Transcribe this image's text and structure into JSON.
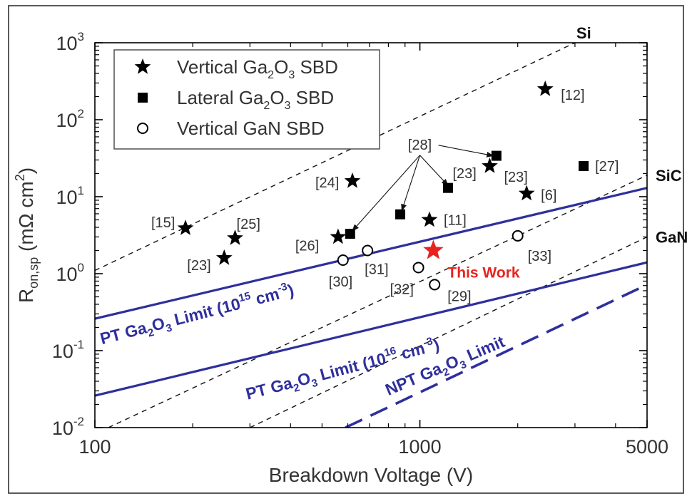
{
  "chart_data": {
    "type": "scatter",
    "title": "",
    "xlabel": "Breakdown Voltage (V)",
    "ylabel": {
      "main": "R",
      "sub": "on,sp",
      "unit": " (mΩ cm",
      "unit_sup": "2",
      "close": ")"
    },
    "x_scale": "log",
    "y_scale": "log",
    "xlim": [
      100,
      5000
    ],
    "ylim": [
      0.01,
      1000
    ],
    "x_ticks": [
      {
        "value": 100,
        "label": "100"
      },
      {
        "value": 1000,
        "label": "1000"
      },
      {
        "value": 5000,
        "label": "5000"
      }
    ],
    "y_ticks": [
      {
        "value": 0.01,
        "base": "10",
        "exp": "-2"
      },
      {
        "value": 0.1,
        "base": "10",
        "exp": "-1"
      },
      {
        "value": 1,
        "base": "10",
        "exp": "0"
      },
      {
        "value": 10,
        "base": "10",
        "exp": "1"
      },
      {
        "value": 100,
        "base": "10",
        "exp": "2"
      },
      {
        "value": 1000,
        "base": "10",
        "exp": "3"
      }
    ],
    "legend": {
      "position": "top-left",
      "entries": [
        {
          "marker": "star",
          "pre": "Vertical Ga",
          "sub": "2",
          "mid": "O",
          "sub2": "3",
          "post": " SBD"
        },
        {
          "marker": "square",
          "pre": "Lateral Ga",
          "sub": "2",
          "mid": "O",
          "sub2": "3",
          "post": " SBD"
        },
        {
          "marker": "circle",
          "pre": "Vertical GaN SBD",
          "sub": "",
          "mid": "",
          "sub2": "",
          "post": ""
        }
      ]
    },
    "limit_lines": [
      {
        "id": "si",
        "style": "dashed-black",
        "points": [
          [
            100,
            1.1
          ],
          [
            3000,
            1000
          ]
        ],
        "label": "Si",
        "label_at": [
          3000,
          1000
        ]
      },
      {
        "id": "sic",
        "style": "dashed-black",
        "points": [
          [
            110,
            0.01
          ],
          [
            5000,
            19
          ]
        ],
        "label": "SiC",
        "label_at": [
          5000,
          19
        ]
      },
      {
        "id": "gan",
        "style": "dashed-black",
        "points": [
          [
            300,
            0.01
          ],
          [
            5000,
            3
          ]
        ],
        "label": "GaN",
        "label_at": [
          5000,
          3
        ]
      },
      {
        "id": "pt15",
        "style": "solid-blue",
        "points": [
          [
            100,
            0.26
          ],
          [
            5000,
            13
          ]
        ],
        "label_pre": "PT Ga",
        "label_sub": "2",
        "label_mid": "O",
        "label_sub2": "3",
        "label_post": " Limit (10",
        "label_sup": "15",
        "label_unit": " cm",
        "label_unit_sup": "-3",
        "label_close": ")",
        "label_at": [
          105,
          0.12
        ],
        "label_angle": -14.4
      },
      {
        "id": "pt16",
        "style": "solid-blue",
        "points": [
          [
            100,
            0.026
          ],
          [
            5000,
            1.4
          ]
        ],
        "label_pre": "PT Ga",
        "label_sub": "2",
        "label_mid": "O",
        "label_sub2": "3",
        "label_post": " Limit (10",
        "label_sup": "16",
        "label_unit": " cm",
        "label_unit_sup": "-3",
        "label_close": ")",
        "label_at": [
          295,
          0.023
        ],
        "label_angle": -14.6
      },
      {
        "id": "npt",
        "style": "dashed-blue",
        "points": [
          [
            590,
            0.01
          ],
          [
            5000,
            0.72
          ]
        ],
        "label_pre": "NPT Ga",
        "label_sub": "2",
        "label_mid": "O",
        "label_sub2": "3",
        "label_post": " Limit",
        "label_sup": "",
        "label_unit": "",
        "label_unit_sup": "",
        "label_close": "",
        "label_at": [
          800,
          0.026
        ],
        "label_angle": -23
      }
    ],
    "series": [
      {
        "name": "Vertical Ga2O3 SBD",
        "marker": "star",
        "color": "#000000",
        "points": [
          {
            "x": 190,
            "y": 3.9,
            "label": "[15]"
          },
          {
            "x": 250,
            "y": 1.6,
            "label": "[23]"
          },
          {
            "x": 270,
            "y": 2.9,
            "label": "[25]"
          },
          {
            "x": 560,
            "y": 3.0,
            "label": "[26]"
          },
          {
            "x": 620,
            "y": 16,
            "label": "[24]"
          },
          {
            "x": 1070,
            "y": 5.0,
            "label": "[11]"
          },
          {
            "x": 1640,
            "y": 25,
            "label": "[23]"
          },
          {
            "x": 2130,
            "y": 11,
            "label": "[6]"
          },
          {
            "x": 2430,
            "y": 250,
            "label": "[12]"
          }
        ]
      },
      {
        "name": "Lateral Ga2O3 SBD",
        "marker": "square",
        "color": "#000000",
        "points": [
          {
            "x": 610,
            "y": 3.3,
            "label": ""
          },
          {
            "x": 870,
            "y": 5.9,
            "label": ""
          },
          {
            "x": 1220,
            "y": 13,
            "label": ""
          },
          {
            "x": 1720,
            "y": 34,
            "label": ""
          },
          {
            "x": 3190,
            "y": 25,
            "label": "[27]"
          }
        ]
      },
      {
        "name": "Vertical GaN SBD",
        "marker": "circle",
        "color": "#000000",
        "points": [
          {
            "x": 580,
            "y": 1.5,
            "label": "[30]"
          },
          {
            "x": 690,
            "y": 2.0,
            "label": "[31]"
          },
          {
            "x": 990,
            "y": 1.2,
            "label": "[32]"
          },
          {
            "x": 1110,
            "y": 0.72,
            "label": "[29]"
          },
          {
            "x": 2000,
            "y": 3.1,
            "label": "[33]"
          }
        ]
      },
      {
        "name": "This Work",
        "marker": "star",
        "color": "#e8231f",
        "points": [
          {
            "x": 1100,
            "y": 2.0,
            "label": "This Work"
          }
        ]
      }
    ],
    "annotations": [
      {
        "text": "[28]",
        "at": [
          1000,
          41
        ],
        "arrows_to": [
          [
            620,
            3.6
          ],
          [
            880,
            6.6
          ],
          [
            1220,
            14
          ],
          [
            1680,
            34
          ]
        ]
      }
    ]
  }
}
